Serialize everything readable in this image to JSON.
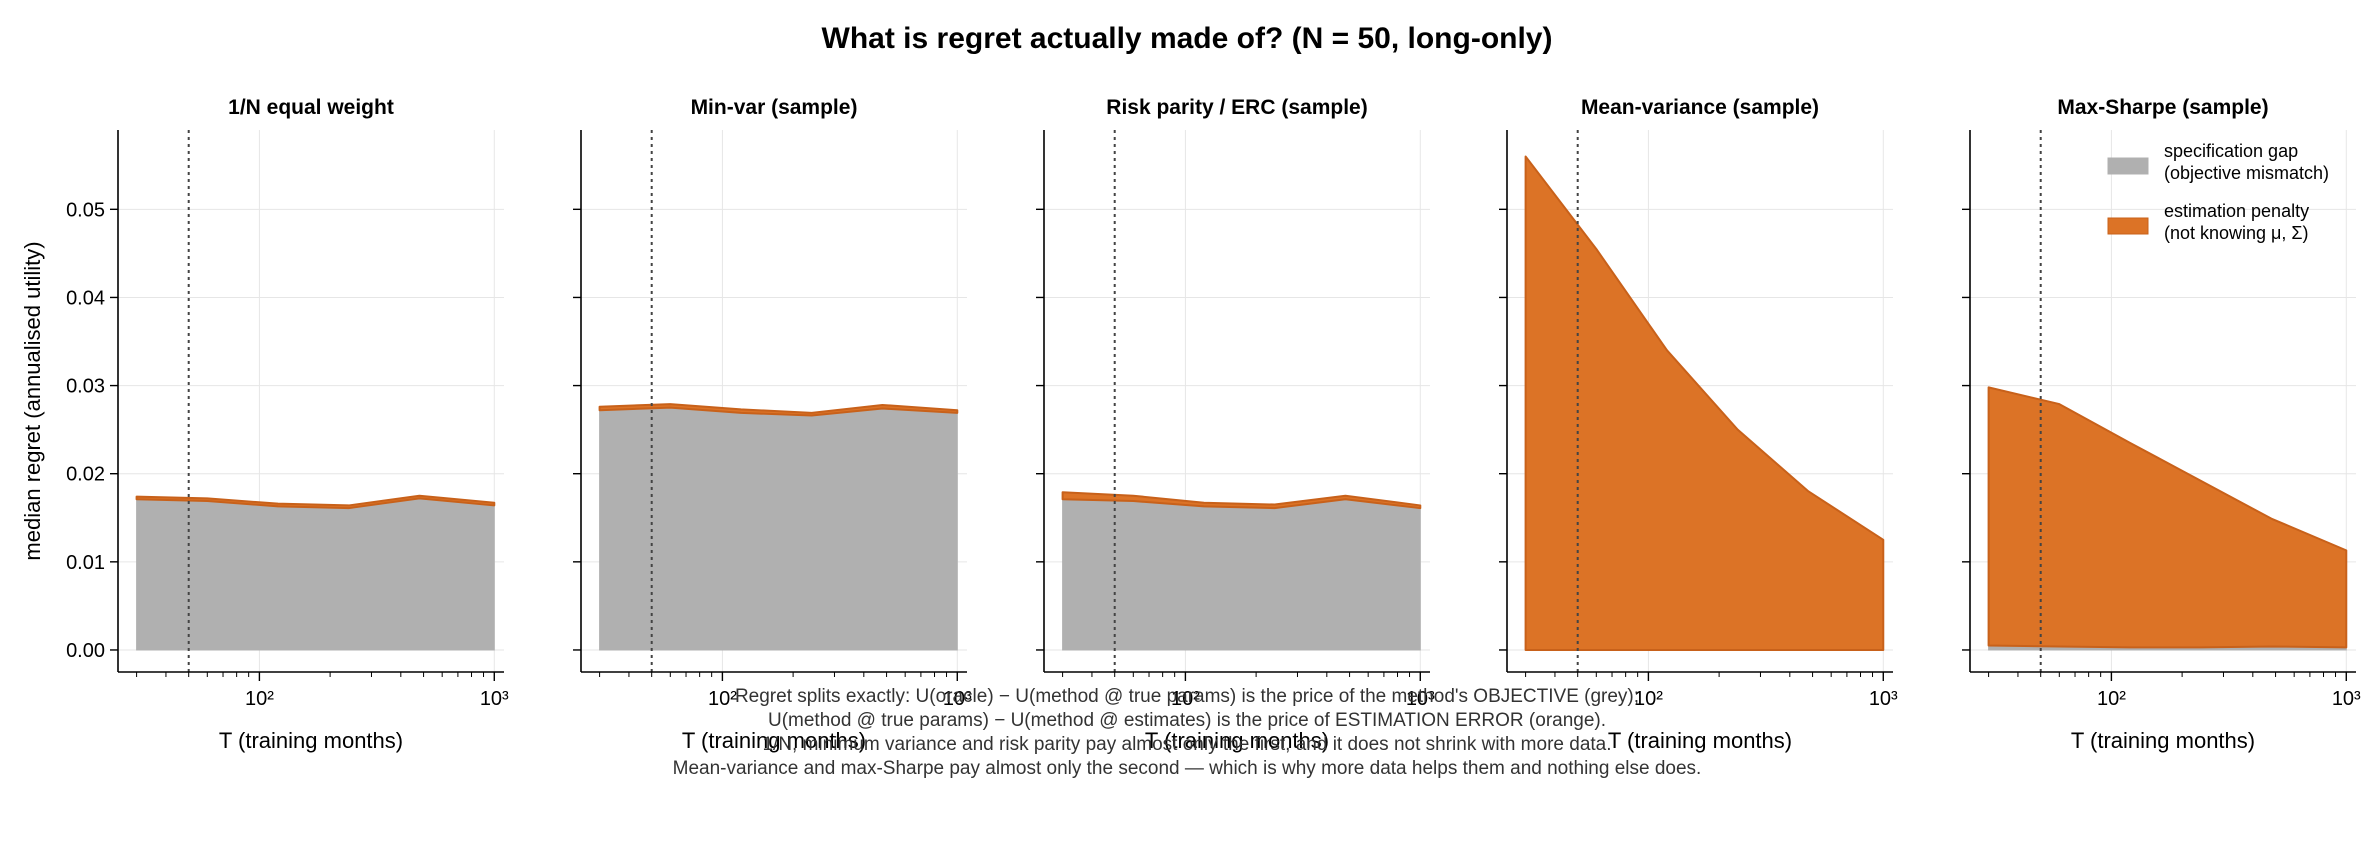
{
  "figure": {
    "title": "What is regret actually made of?  (N = 50, long-only)",
    "caption_lines": [
      "Regret splits exactly: U(oracle) − U(method @ true params) is the price of the method's OBJECTIVE (grey);",
      "U(method @ true params) − U(method @ estimates) is the price of ESTIMATION ERROR (orange).",
      "1/N, minimum variance and risk parity pay almost only the first, and it does not shrink with more data.",
      "Mean-variance and max-Sharpe pay almost only the second — which is why more data helps them and nothing else does."
    ]
  },
  "colors": {
    "specification_gap": "#b0b0b0",
    "estimation_penalty": "#dc7326",
    "estimation_edge": "#c8611a",
    "reference_line": "#444444",
    "grid": "#e6e6e6"
  },
  "legend": {
    "placement": "top-right of last panel",
    "entries": [
      {
        "series": "specification_gap",
        "label_line1": "specification gap",
        "label_line2": "(objective mismatch)"
      },
      {
        "series": "estimation_penalty",
        "label_line1": "estimation penalty",
        "label_line2": "(not knowing μ, Σ)"
      }
    ]
  },
  "chart_data": [
    {
      "type": "area",
      "stacked": true,
      "title": "1/N equal weight",
      "xlabel": "T  (training months)",
      "ylabel": "median regret (annualised utility)",
      "xscale": "log",
      "xlim": [
        25,
        1100
      ],
      "ylim": [
        -0.0025,
        0.059
      ],
      "yticks": [
        0.0,
        0.01,
        0.02,
        0.03,
        0.04,
        0.05
      ],
      "ytick_labels": [
        "0.00",
        "0.01",
        "0.02",
        "0.03",
        "0.04",
        "0.05"
      ],
      "xtick_labels": [
        "10²",
        "10³"
      ],
      "grid": true,
      "reference_x": 50,
      "x": [
        30,
        60,
        120,
        240,
        480,
        1000
      ],
      "series": [
        {
          "name": "specification gap (objective mismatch)",
          "key": "specification_gap",
          "values": [
            0.0171,
            0.0169,
            0.0163,
            0.0161,
            0.0172,
            0.0164
          ]
        },
        {
          "name": "estimation penalty (not knowing μ, Σ)",
          "key": "estimation_penalty",
          "values": [
            0.0003,
            0.0003,
            0.0003,
            0.0003,
            0.0003,
            0.0003
          ]
        }
      ]
    },
    {
      "type": "area",
      "stacked": true,
      "title": "Min-var (sample)",
      "xlabel": "T  (training months)",
      "ylabel": "",
      "xscale": "log",
      "xlim": [
        25,
        1100
      ],
      "ylim": [
        -0.0025,
        0.059
      ],
      "yticks": [
        0.0,
        0.01,
        0.02,
        0.03,
        0.04,
        0.05
      ],
      "ytick_labels": [],
      "xtick_labels": [
        "10²",
        "10³"
      ],
      "grid": true,
      "reference_x": 50,
      "x": [
        30,
        60,
        120,
        240,
        480,
        1000
      ],
      "series": [
        {
          "name": "specification gap (objective mismatch)",
          "key": "specification_gap",
          "values": [
            0.0272,
            0.0275,
            0.0269,
            0.0266,
            0.0274,
            0.0269
          ]
        },
        {
          "name": "estimation penalty (not knowing μ, Σ)",
          "key": "estimation_penalty",
          "values": [
            0.0004,
            0.0004,
            0.0004,
            0.0003,
            0.0004,
            0.0003
          ]
        }
      ]
    },
    {
      "type": "area",
      "stacked": true,
      "title": "Risk parity / ERC (sample)",
      "xlabel": "T  (training months)",
      "ylabel": "",
      "xscale": "log",
      "xlim": [
        25,
        1100
      ],
      "ylim": [
        -0.0025,
        0.059
      ],
      "yticks": [
        0.0,
        0.01,
        0.02,
        0.03,
        0.04,
        0.05
      ],
      "ytick_labels": [],
      "xtick_labels": [
        "10²",
        "10³"
      ],
      "grid": true,
      "reference_x": 50,
      "x": [
        30,
        60,
        120,
        240,
        480,
        1000
      ],
      "series": [
        {
          "name": "specification gap (objective mismatch)",
          "key": "specification_gap",
          "values": [
            0.0171,
            0.0169,
            0.0163,
            0.0161,
            0.0171,
            0.0161
          ]
        },
        {
          "name": "estimation penalty (not knowing μ, Σ)",
          "key": "estimation_penalty",
          "values": [
            0.0008,
            0.0006,
            0.0004,
            0.0004,
            0.0004,
            0.0003
          ]
        }
      ]
    },
    {
      "type": "area",
      "stacked": true,
      "title": "Mean-variance (sample)",
      "xlabel": "T  (training months)",
      "ylabel": "",
      "xscale": "log",
      "xlim": [
        25,
        1100
      ],
      "ylim": [
        -0.0025,
        0.059
      ],
      "yticks": [
        0.0,
        0.01,
        0.02,
        0.03,
        0.04,
        0.05
      ],
      "ytick_labels": [],
      "xtick_labels": [
        "10²",
        "10³"
      ],
      "grid": true,
      "reference_x": 50,
      "x": [
        30,
        60,
        120,
        240,
        480,
        1000
      ],
      "series": [
        {
          "name": "specification gap (objective mismatch)",
          "key": "specification_gap",
          "values": [
            0.0,
            0.0,
            0.0,
            0.0,
            0.0,
            0.0
          ]
        },
        {
          "name": "estimation penalty (not knowing μ, Σ)",
          "key": "estimation_penalty",
          "values": [
            0.056,
            0.0455,
            0.034,
            0.025,
            0.018,
            0.0125
          ]
        }
      ]
    },
    {
      "type": "area",
      "stacked": true,
      "title": "Max-Sharpe (sample)",
      "xlabel": "T  (training months)",
      "ylabel": "",
      "xscale": "log",
      "xlim": [
        25,
        1100
      ],
      "ylim": [
        -0.0025,
        0.059
      ],
      "yticks": [
        0.0,
        0.01,
        0.02,
        0.03,
        0.04,
        0.05
      ],
      "ytick_labels": [],
      "xtick_labels": [
        "10²",
        "10³"
      ],
      "grid": true,
      "reference_x": 50,
      "x": [
        30,
        60,
        120,
        240,
        480,
        1000
      ],
      "series": [
        {
          "name": "specification gap (objective mismatch)",
          "key": "specification_gap",
          "values": [
            0.0005,
            0.0004,
            0.0003,
            0.0003,
            0.0004,
            0.0003
          ]
        },
        {
          "name": "estimation penalty (not knowing μ, Σ)",
          "key": "estimation_penalty",
          "values": [
            0.0293,
            0.0275,
            0.0232,
            0.0189,
            0.0145,
            0.011
          ]
        }
      ]
    }
  ]
}
